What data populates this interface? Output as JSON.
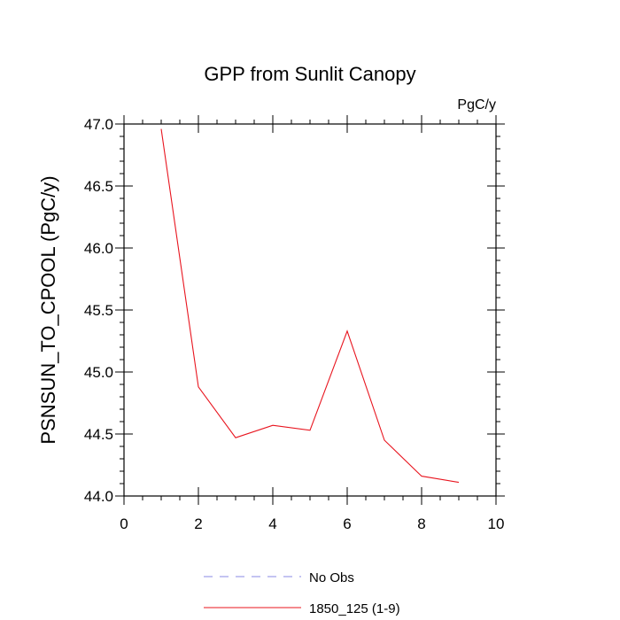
{
  "chart_data": {
    "type": "line",
    "title": "GPP from Sunlit Canopy",
    "units": "PgC/y",
    "xlabel": "",
    "ylabel": "PSNSUN_TO_CPOOL  (PgC/y)",
    "xlim": [
      0,
      10
    ],
    "ylim": [
      44.0,
      47.0
    ],
    "x_ticks": [
      0,
      2,
      4,
      6,
      8,
      10
    ],
    "x_tick_labels": [
      "0",
      "2",
      "4",
      "6",
      "8",
      "10"
    ],
    "y_ticks": [
      44.0,
      44.5,
      45.0,
      45.5,
      46.0,
      46.5,
      47.0
    ],
    "y_tick_labels": [
      "44.0",
      "44.5",
      "45.0",
      "45.5",
      "46.0",
      "46.5",
      "47.0"
    ],
    "grid": false,
    "legend_position": "bottom",
    "series": [
      {
        "name": "1850_125 (1-9)",
        "color": "#e8141e",
        "style": "solid",
        "x": [
          1,
          2,
          3,
          4,
          5,
          6,
          7,
          8,
          9
        ],
        "y": [
          46.96,
          44.88,
          44.47,
          44.57,
          44.53,
          45.33,
          44.45,
          44.16,
          44.11
        ]
      }
    ],
    "legend": [
      {
        "label": "No Obs",
        "color": "#8a8ae6",
        "style": "dashed"
      },
      {
        "label": "1850_125 (1-9)",
        "color": "#e8141e",
        "style": "solid"
      }
    ]
  }
}
